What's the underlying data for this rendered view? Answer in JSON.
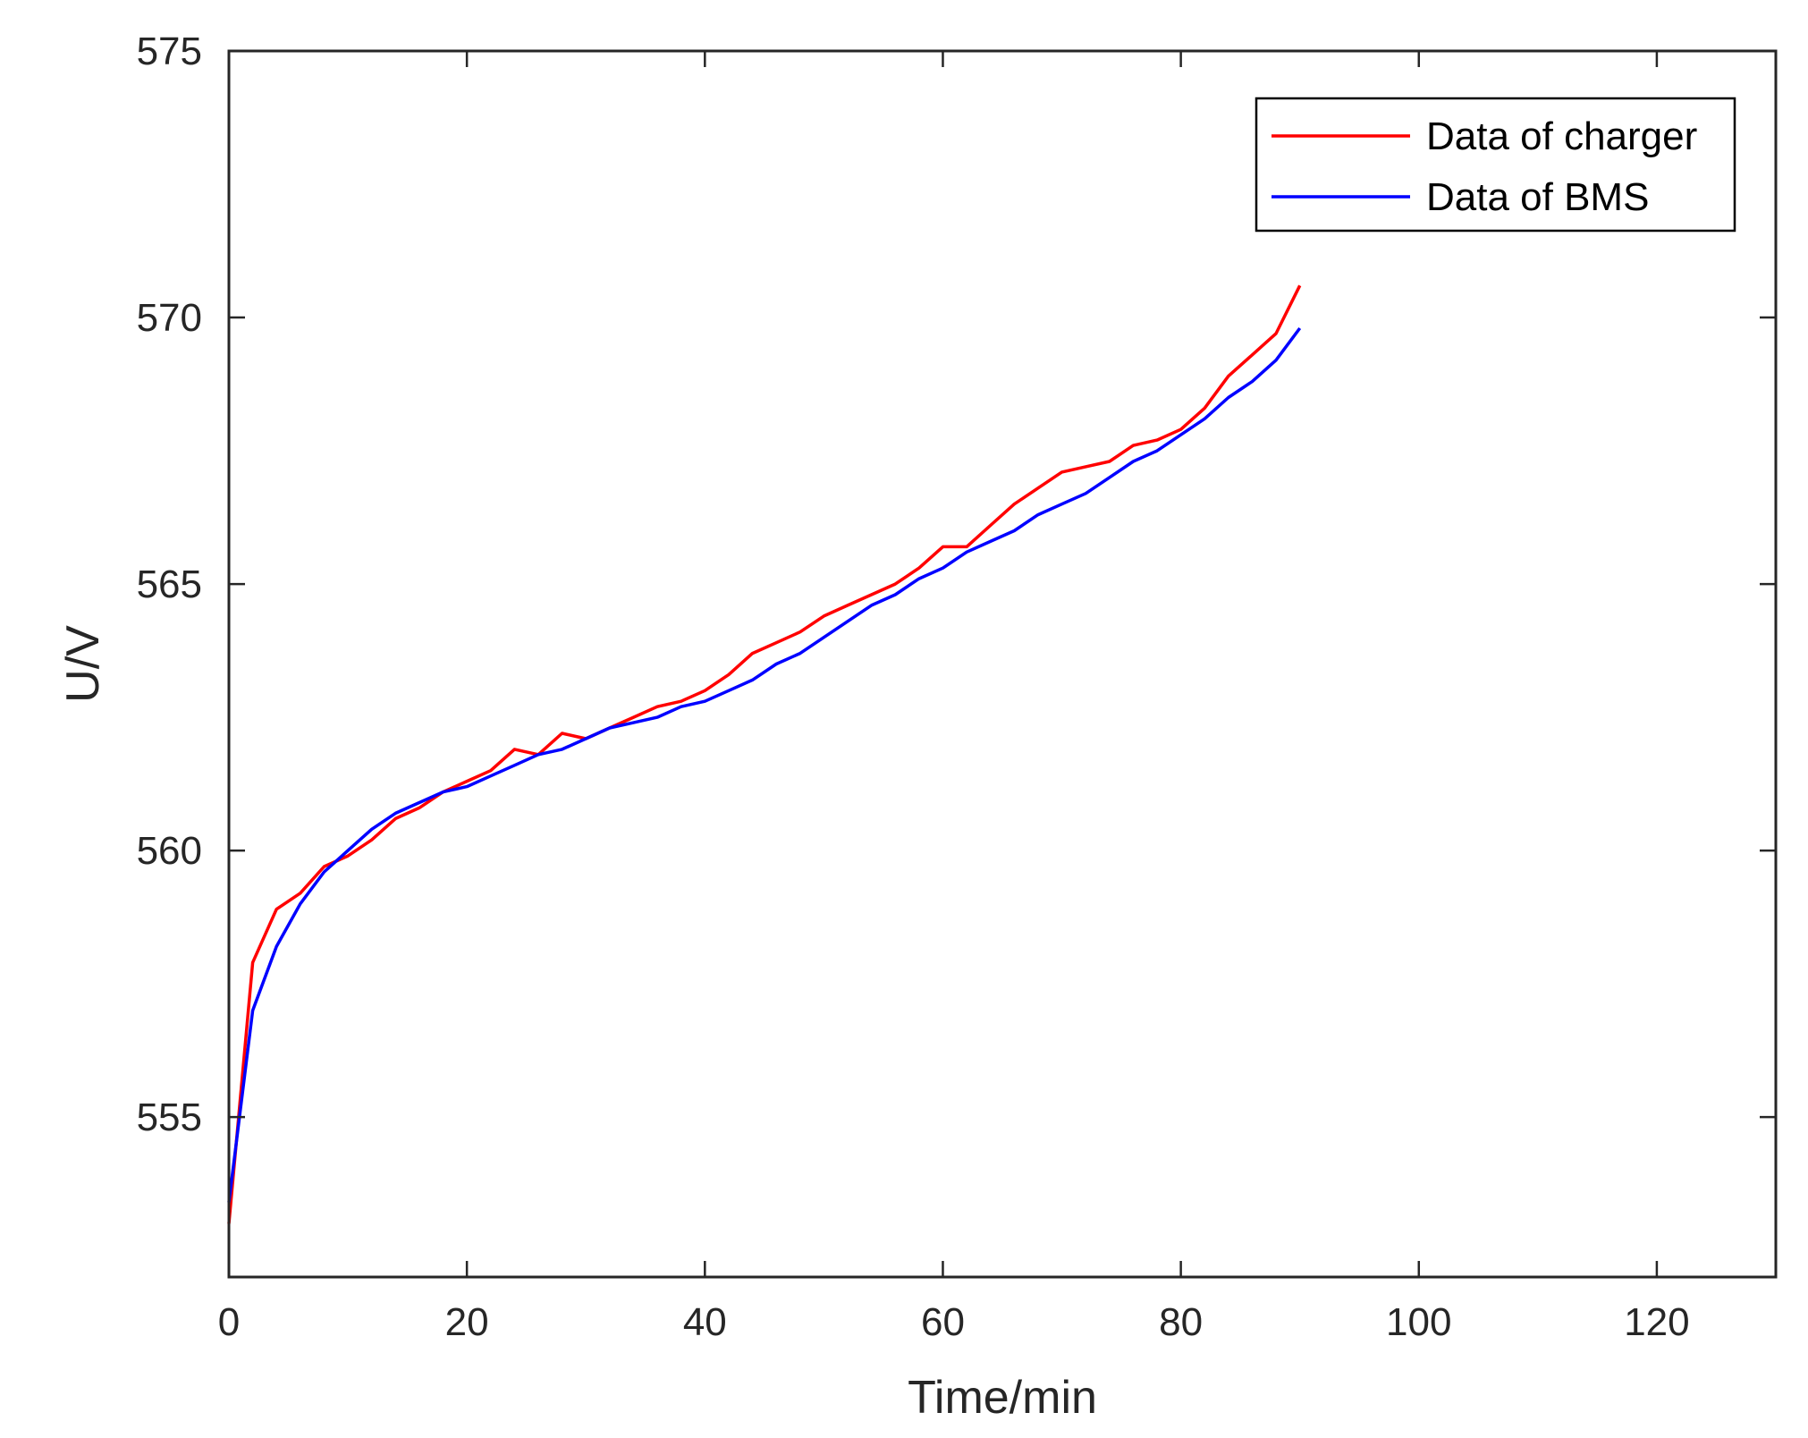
{
  "chart_data": {
    "type": "line",
    "title": "",
    "xlabel": "Time/min",
    "ylabel": "U/V",
    "xlim": [
      0,
      130
    ],
    "ylim": [
      552,
      575
    ],
    "xticks": [
      0,
      20,
      40,
      60,
      80,
      100,
      120
    ],
    "yticks": [
      555,
      560,
      565,
      570,
      575
    ],
    "grid": false,
    "legend_position": "top-right",
    "series": [
      {
        "name": "Data of charger",
        "color": "#ff0000",
        "x": [
          0,
          2,
          4,
          6,
          8,
          10,
          12,
          14,
          16,
          18,
          20,
          22,
          24,
          26,
          28,
          30,
          32,
          34,
          36,
          38,
          40,
          42,
          44,
          46,
          48,
          50,
          52,
          54,
          56,
          58,
          60,
          62,
          64,
          66,
          68,
          70,
          72,
          74,
          76,
          78,
          80,
          82,
          84,
          86,
          88,
          90
        ],
        "y": [
          553.0,
          557.9,
          558.9,
          559.2,
          559.7,
          559.9,
          560.2,
          560.6,
          560.8,
          561.1,
          561.3,
          561.5,
          561.9,
          561.8,
          562.2,
          562.1,
          562.3,
          562.5,
          562.7,
          562.8,
          563.0,
          563.3,
          563.7,
          563.9,
          564.1,
          564.4,
          564.6,
          564.8,
          565.0,
          565.3,
          565.7,
          565.7,
          566.1,
          566.5,
          566.8,
          567.1,
          567.2,
          567.3,
          567.6,
          567.7,
          567.9,
          568.3,
          568.9,
          569.3,
          569.7,
          570.6
        ]
      },
      {
        "name": "Data of BMS",
        "color": "#0000ff",
        "x": [
          0,
          2,
          4,
          6,
          8,
          10,
          12,
          14,
          16,
          18,
          20,
          22,
          24,
          26,
          28,
          30,
          32,
          34,
          36,
          38,
          40,
          42,
          44,
          46,
          48,
          50,
          52,
          54,
          56,
          58,
          60,
          62,
          64,
          66,
          68,
          70,
          72,
          74,
          76,
          78,
          80,
          82,
          84,
          86,
          88,
          90
        ],
        "y": [
          553.4,
          557.0,
          558.2,
          559.0,
          559.6,
          560.0,
          560.4,
          560.7,
          560.9,
          561.1,
          561.2,
          561.4,
          561.6,
          561.8,
          561.9,
          562.1,
          562.3,
          562.4,
          562.5,
          562.7,
          562.8,
          563.0,
          563.2,
          563.5,
          563.7,
          564.0,
          564.3,
          564.6,
          564.8,
          565.1,
          565.3,
          565.6,
          565.8,
          566.0,
          566.3,
          566.5,
          566.7,
          567.0,
          567.3,
          567.5,
          567.8,
          568.1,
          568.5,
          568.8,
          569.2,
          569.8
        ]
      }
    ]
  }
}
